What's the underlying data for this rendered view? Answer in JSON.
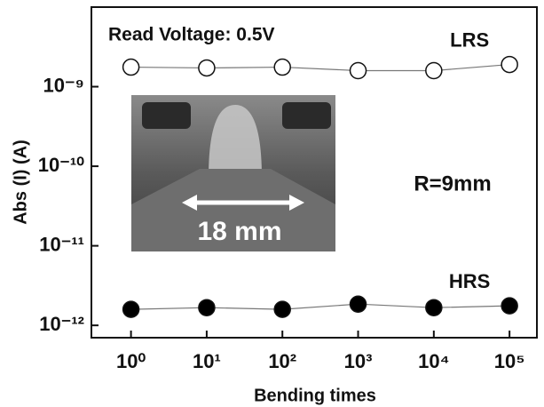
{
  "chart_data": {
    "type": "scatter",
    "annotations": {
      "read_voltage": "Read Voltage: 0.5V",
      "radius": "R=9mm",
      "inset_label": "18 mm"
    },
    "x_label": "Bending times",
    "y_label": "Abs (I) (A)",
    "x": [
      1,
      10,
      100,
      1000,
      10000,
      100000
    ],
    "xlog": true,
    "ylog": true,
    "xlim": [
      0.3,
      230000
    ],
    "ylim": [
      7e-13,
      1e-08
    ],
    "xticks": [
      {
        "value": 1,
        "label": "10⁰"
      },
      {
        "value": 10,
        "label": "10¹"
      },
      {
        "value": 100,
        "label": "10²"
      },
      {
        "value": 1000,
        "label": "10³"
      },
      {
        "value": 10000,
        "label": "10⁴"
      },
      {
        "value": 100000,
        "label": "10⁵"
      }
    ],
    "yticks": [
      {
        "value": 1e-12,
        "label": "10⁻¹²"
      },
      {
        "value": 1e-11,
        "label": "10⁻¹¹"
      },
      {
        "value": 1e-10,
        "label": "10⁻¹⁰"
      },
      {
        "value": 1e-09,
        "label": "10⁻⁹"
      }
    ],
    "series": [
      {
        "name": "LRS",
        "color": "#ffffff",
        "values": [
          1.76e-09,
          1.72e-09,
          1.76e-09,
          1.59e-09,
          1.59e-09,
          1.9e-09
        ]
      },
      {
        "name": "HRS",
        "color": "#000000",
        "values": [
          1.59e-12,
          1.67e-12,
          1.59e-12,
          1.85e-12,
          1.67e-12,
          1.76e-12
        ]
      }
    ]
  }
}
